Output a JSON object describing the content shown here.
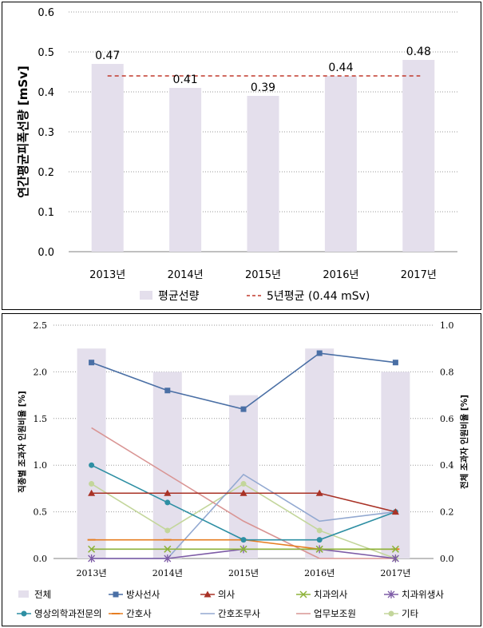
{
  "chart_data": [
    {
      "type": "bar",
      "ylabel": "연간평균피폭선량 [mSv]",
      "ylim": [
        0,
        0.6
      ],
      "yticks": [
        "0.0",
        "0.1",
        "0.2",
        "0.3",
        "0.4",
        "0.5",
        "0.6"
      ],
      "categories": [
        "2013년",
        "2014년",
        "2015년",
        "2016년",
        "2017년"
      ],
      "series": [
        {
          "name": "평균선량",
          "values": [
            0.47,
            0.41,
            0.39,
            0.44,
            0.48
          ],
          "labels": [
            "0.47",
            "0.41",
            "0.39",
            "0.44",
            "0.48"
          ],
          "color": "#E4DFEC"
        }
      ],
      "reference_line": {
        "name": "5년평균 (0.44 mSv)",
        "value": 0.44,
        "color": "#C0392B",
        "style": "dashed"
      },
      "grid": true,
      "legend": "bottom"
    },
    {
      "type": "bar+line",
      "ylabel": "직종별 조과자 인원비율 [%]",
      "y2label": "전체 조과자 인원비율 [%]",
      "ylim": [
        0,
        2.5
      ],
      "y2lim": [
        0,
        1.0
      ],
      "yticks": [
        "0.0",
        "0.5",
        "1.0",
        "1.5",
        "2.0",
        "2.5"
      ],
      "y2ticks": [
        "0.0",
        "0.2",
        "0.4",
        "0.6",
        "0.8",
        "1.0"
      ],
      "categories": [
        "2013년",
        "2014년",
        "2015년",
        "2016년",
        "2017년"
      ],
      "bars": {
        "name": "전체",
        "axis": "right",
        "values": [
          0.9,
          0.8,
          0.7,
          0.9,
          0.8
        ],
        "color": "#E4DFEC"
      },
      "series": [
        {
          "name": "방사선사",
          "values": [
            2.1,
            1.8,
            1.6,
            2.2,
            2.1
          ],
          "color": "#4A6FA5",
          "marker": "square"
        },
        {
          "name": "의사",
          "values": [
            0.7,
            0.7,
            0.7,
            0.7,
            0.5
          ],
          "color": "#A93226",
          "marker": "triangle"
        },
        {
          "name": "치과의사",
          "values": [
            0.1,
            0.1,
            0.1,
            0.1,
            0.1
          ],
          "color": "#8DB33A",
          "marker": "x"
        },
        {
          "name": "치과위생사",
          "values": [
            0.0,
            0.0,
            0.1,
            0.1,
            0.0
          ],
          "color": "#7D5BA6",
          "marker": "star"
        },
        {
          "name": "영상의학과전문의",
          "values": [
            1.0,
            0.6,
            0.2,
            0.2,
            0.5
          ],
          "color": "#2E8FA3",
          "marker": "circle"
        },
        {
          "name": "간호사",
          "values": [
            0.2,
            0.2,
            0.2,
            0.1,
            0.1
          ],
          "color": "#E67E22",
          "marker": "dash"
        },
        {
          "name": "간호조무사",
          "values": [
            0.0,
            0.0,
            0.9,
            0.4,
            0.5
          ],
          "color": "#93A9D1",
          "marker": "none"
        },
        {
          "name": "업무보조원",
          "values": [
            1.4,
            0.9,
            0.4,
            0.0,
            0.0
          ],
          "color": "#D99594",
          "marker": "none"
        },
        {
          "name": "기타",
          "values": [
            0.8,
            0.3,
            0.8,
            0.3,
            0.0
          ],
          "color": "#C3D69B",
          "marker": "circle"
        }
      ],
      "grid": true,
      "legend": "bottom"
    }
  ]
}
